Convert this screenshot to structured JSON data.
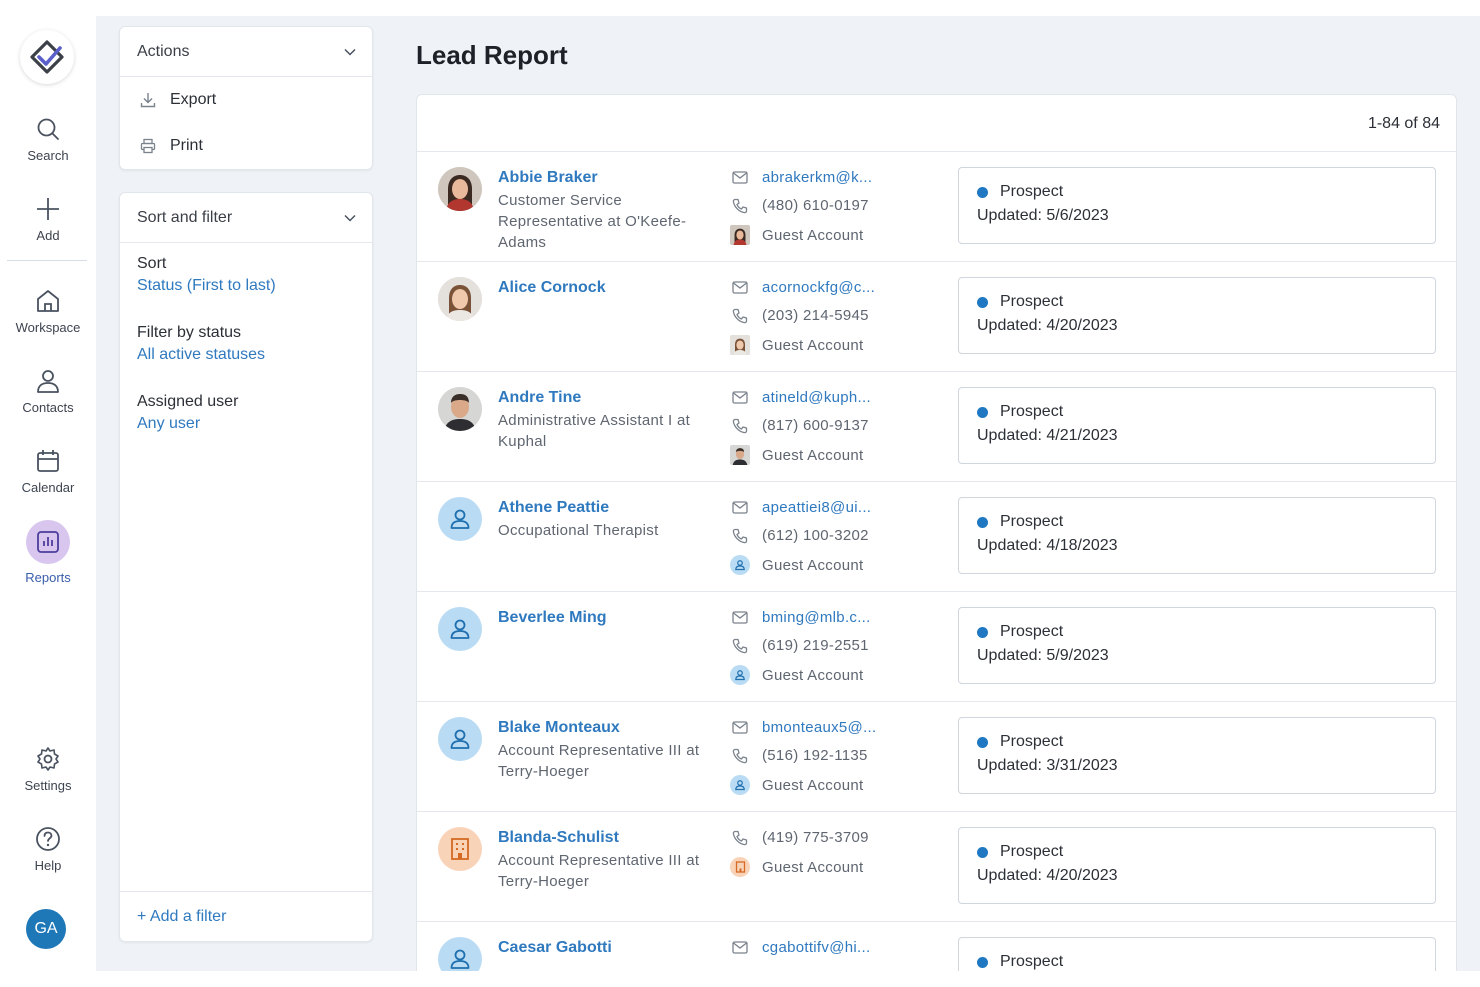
{
  "nav": {
    "items": [
      {
        "label": "Search",
        "icon": "search-icon"
      },
      {
        "label": "Add",
        "icon": "plus-icon"
      },
      {
        "label": "Workspace",
        "icon": "home-icon"
      },
      {
        "label": "Contacts",
        "icon": "person-icon"
      },
      {
        "label": "Calendar",
        "icon": "calendar-icon"
      },
      {
        "label": "Reports",
        "icon": "bar-chart-icon",
        "active": true
      },
      {
        "label": "Settings",
        "icon": "gear-icon"
      },
      {
        "label": "Help",
        "icon": "help-icon"
      }
    ],
    "user_initials": "GA"
  },
  "actions": {
    "title": "Actions",
    "items": [
      {
        "label": "Export",
        "icon": "download-icon"
      },
      {
        "label": "Print",
        "icon": "printer-icon"
      }
    ]
  },
  "sort_filter": {
    "title": "Sort and filter",
    "sort_label": "Sort",
    "sort_value": "Status (First to last)",
    "status_label": "Filter by status",
    "status_value": "All active statuses",
    "user_label": "Assigned user",
    "user_value": "Any user",
    "add_filter": "+ Add a filter"
  },
  "report": {
    "title": "Lead Report",
    "count": "1-84 of 84",
    "rows": [
      {
        "name": "Abbie Braker",
        "title": "Customer Service Representative at O'Keefe-Adams",
        "email": "abrakerkm@k...",
        "phone": "(480) 610-0197",
        "account": "Guest Account",
        "status": "Prospect",
        "updated": "Updated: 5/6/2023",
        "avatar": "photo-woman"
      },
      {
        "name": "Alice Cornock",
        "title": "",
        "email": "acornockfg@c...",
        "phone": "(203) 214-5945",
        "account": "Guest Account",
        "status": "Prospect",
        "updated": "Updated: 4/20/2023",
        "avatar": "photo-woman"
      },
      {
        "name": "Andre Tine",
        "title": "Administrative Assistant I at Kuphal",
        "email": "atineld@kuph...",
        "phone": "(817) 600-9137",
        "account": "Guest Account",
        "status": "Prospect",
        "updated": "Updated: 4/21/2023",
        "avatar": "photo-man"
      },
      {
        "name": "Athene Peattie",
        "title": "Occupational Therapist",
        "email": "apeattiei8@ui...",
        "phone": "(612) 100-3202",
        "account": "Guest Account",
        "status": "Prospect",
        "updated": "Updated: 4/18/2023",
        "avatar": "person"
      },
      {
        "name": "Beverlee Ming",
        "title": "",
        "email": "bming@mlb.c...",
        "phone": "(619) 219-2551",
        "account": "Guest Account",
        "status": "Prospect",
        "updated": "Updated: 5/9/2023",
        "avatar": "person"
      },
      {
        "name": "Blake Monteaux",
        "title": "Account Representative III at Terry-Hoeger",
        "email": "bmonteaux5@...",
        "phone": "(516) 192-1135",
        "account": "Guest Account",
        "status": "Prospect",
        "updated": "Updated: 3/31/2023",
        "avatar": "person"
      },
      {
        "name": "Blanda-Schulist",
        "title": "Account Representative III at Terry-Hoeger",
        "email": "",
        "phone": "(419) 775-3709",
        "account": "Guest Account",
        "status": "Prospect",
        "updated": "Updated: 4/20/2023",
        "avatar": "company"
      },
      {
        "name": "Caesar Gabotti",
        "title": "",
        "email": "cgabottifv@hi...",
        "phone": "",
        "account": "",
        "status": "Prospect",
        "updated": "",
        "avatar": "person"
      }
    ]
  },
  "colors": {
    "accent": "#2f79bf",
    "status_dot": "#1f78c1",
    "reports_bubble": "#d9c6ef",
    "avatar_person_bg": "#b9dbf3",
    "avatar_company_bg": "#f9d3b8",
    "user_avatar_bg": "#1e78b8"
  }
}
